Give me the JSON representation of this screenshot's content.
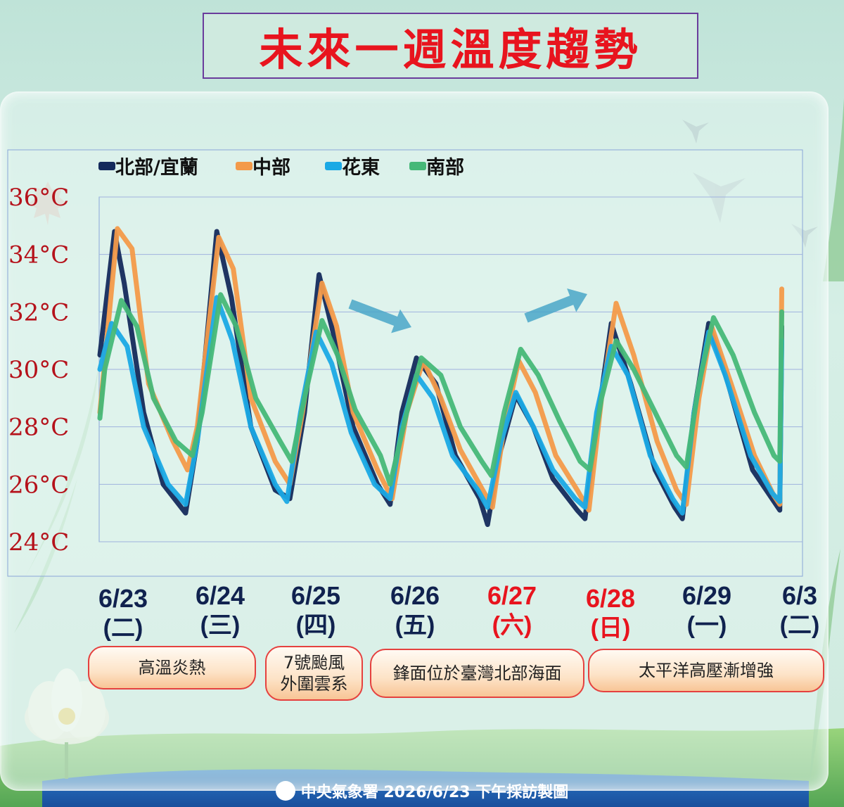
{
  "title": "未來一週溫度趨勢",
  "legend": [
    {
      "name": "北部/宜蘭",
      "color": "#142a5c"
    },
    {
      "name": "中部",
      "color": "#f39a4a"
    },
    {
      "name": "花東",
      "color": "#1aa9e5"
    },
    {
      "name": "南部",
      "color": "#46b878"
    }
  ],
  "y_ticks": [
    "36°C",
    "34°C",
    "32°C",
    "30°C",
    "28°C",
    "26°C",
    "24°C"
  ],
  "dates": [
    {
      "date": "6/23",
      "weekday": "(二)",
      "color": "#10224f"
    },
    {
      "date": "6/24",
      "weekday": "(三)",
      "color": "#10224f"
    },
    {
      "date": "6/25",
      "weekday": "(四)",
      "color": "#10224f"
    },
    {
      "date": "6/26",
      "weekday": "(五)",
      "color": "#10224f"
    },
    {
      "date": "6/27",
      "weekday": "(六)",
      "color": "#e8141e"
    },
    {
      "date": "6/28",
      "weekday": "(日)",
      "color": "#e8141e"
    },
    {
      "date": "6/29",
      "weekday": "(一)",
      "color": "#10224f"
    },
    {
      "date": "6/3",
      "weekday": "(二)",
      "color": "#10224f"
    }
  ],
  "annotations": [
    "高溫炎熱",
    "7號颱風\n外圍雲系",
    "鋒面位於臺灣北部海面",
    "太平洋高壓漸增強"
  ],
  "footer": "中央氣象署 2026/6/23 下午採訪製圖",
  "chart_data": {
    "type": "line",
    "ylim": [
      24,
      36
    ],
    "x_range": [
      0,
      7
    ],
    "series": [
      {
        "name": "北部/宜蘭",
        "color": "#142a5c",
        "points": [
          [
            0,
            30.5
          ],
          [
            0.15,
            34.8
          ],
          [
            0.25,
            33.0
          ],
          [
            0.45,
            28.5
          ],
          [
            0.65,
            26.0
          ],
          [
            0.88,
            25.0
          ],
          [
            1.0,
            27.5
          ],
          [
            1.2,
            34.8
          ],
          [
            1.35,
            32.5
          ],
          [
            1.55,
            28.0
          ],
          [
            1.8,
            25.8
          ],
          [
            1.95,
            25.5
          ],
          [
            2.1,
            28.5
          ],
          [
            2.25,
            33.3
          ],
          [
            2.4,
            31.2
          ],
          [
            2.6,
            28.0
          ],
          [
            2.85,
            26.0
          ],
          [
            2.98,
            25.3
          ],
          [
            3.1,
            28.5
          ],
          [
            3.25,
            30.4
          ],
          [
            3.45,
            29.5
          ],
          [
            3.65,
            27.0
          ],
          [
            3.9,
            25.5
          ],
          [
            3.98,
            24.6
          ],
          [
            4.1,
            27.0
          ],
          [
            4.27,
            29.1
          ],
          [
            4.45,
            28.0
          ],
          [
            4.65,
            26.2
          ],
          [
            4.9,
            25.1
          ],
          [
            4.98,
            24.8
          ],
          [
            5.1,
            28.0
          ],
          [
            5.25,
            31.6
          ],
          [
            5.45,
            29.5
          ],
          [
            5.7,
            26.5
          ],
          [
            5.9,
            25.2
          ],
          [
            5.98,
            24.8
          ],
          [
            6.1,
            28.5
          ],
          [
            6.25,
            31.6
          ],
          [
            6.45,
            29.5
          ],
          [
            6.7,
            26.5
          ],
          [
            6.9,
            25.5
          ],
          [
            6.98,
            25.1
          ],
          [
            7.0,
            31.5
          ]
        ]
      },
      {
        "name": "中部",
        "color": "#f39a4a",
        "points": [
          [
            0,
            28.5
          ],
          [
            0.18,
            34.9
          ],
          [
            0.33,
            34.2
          ],
          [
            0.5,
            29.5
          ],
          [
            0.75,
            27.5
          ],
          [
            0.9,
            26.5
          ],
          [
            1.0,
            28.0
          ],
          [
            1.22,
            34.6
          ],
          [
            1.37,
            33.5
          ],
          [
            1.55,
            29.0
          ],
          [
            1.8,
            26.8
          ],
          [
            1.95,
            26.0
          ],
          [
            2.08,
            28.5
          ],
          [
            2.28,
            33.0
          ],
          [
            2.43,
            31.5
          ],
          [
            2.6,
            28.5
          ],
          [
            2.85,
            26.5
          ],
          [
            3.0,
            25.5
          ],
          [
            3.15,
            28.5
          ],
          [
            3.32,
            30.3
          ],
          [
            3.5,
            29.0
          ],
          [
            3.7,
            27.2
          ],
          [
            3.93,
            25.8
          ],
          [
            4.03,
            25.2
          ],
          [
            4.15,
            28.0
          ],
          [
            4.3,
            30.3
          ],
          [
            4.47,
            29.2
          ],
          [
            4.68,
            27.0
          ],
          [
            4.9,
            25.8
          ],
          [
            5.02,
            25.1
          ],
          [
            5.15,
            29.0
          ],
          [
            5.3,
            32.3
          ],
          [
            5.48,
            30.5
          ],
          [
            5.72,
            27.5
          ],
          [
            5.92,
            25.8
          ],
          [
            6.02,
            25.3
          ],
          [
            6.15,
            29.0
          ],
          [
            6.28,
            31.5
          ],
          [
            6.48,
            29.5
          ],
          [
            6.72,
            27.0
          ],
          [
            6.92,
            25.6
          ],
          [
            6.98,
            25.3
          ],
          [
            7.0,
            32.8
          ]
        ]
      },
      {
        "name": "花東",
        "color": "#1aa9e5",
        "points": [
          [
            0,
            30.0
          ],
          [
            0.12,
            31.6
          ],
          [
            0.28,
            30.8
          ],
          [
            0.45,
            28.0
          ],
          [
            0.7,
            26.0
          ],
          [
            0.88,
            25.3
          ],
          [
            1.0,
            27.5
          ],
          [
            1.2,
            32.5
          ],
          [
            1.36,
            31.0
          ],
          [
            1.55,
            28.0
          ],
          [
            1.8,
            26.0
          ],
          [
            1.92,
            25.4
          ],
          [
            2.06,
            28.5
          ],
          [
            2.22,
            31.3
          ],
          [
            2.38,
            30.2
          ],
          [
            2.58,
            27.8
          ],
          [
            2.82,
            26.0
          ],
          [
            2.98,
            25.5
          ],
          [
            3.1,
            28.0
          ],
          [
            3.25,
            29.8
          ],
          [
            3.42,
            29.0
          ],
          [
            3.62,
            27.0
          ],
          [
            3.88,
            25.8
          ],
          [
            3.98,
            25.2
          ],
          [
            4.12,
            27.5
          ],
          [
            4.27,
            29.2
          ],
          [
            4.45,
            28.0
          ],
          [
            4.65,
            26.5
          ],
          [
            4.88,
            25.5
          ],
          [
            4.98,
            25.2
          ],
          [
            5.1,
            28.5
          ],
          [
            5.25,
            30.8
          ],
          [
            5.42,
            29.8
          ],
          [
            5.65,
            27.0
          ],
          [
            5.88,
            25.5
          ],
          [
            5.98,
            25.0
          ],
          [
            6.1,
            28.5
          ],
          [
            6.25,
            31.3
          ],
          [
            6.42,
            29.8
          ],
          [
            6.68,
            27.0
          ],
          [
            6.9,
            25.7
          ],
          [
            6.98,
            25.4
          ],
          [
            7.0,
            31.0
          ]
        ]
      },
      {
        "name": "南部",
        "color": "#46b878",
        "points": [
          [
            0,
            28.3
          ],
          [
            0.05,
            30.0
          ],
          [
            0.22,
            32.4
          ],
          [
            0.38,
            31.5
          ],
          [
            0.55,
            29.0
          ],
          [
            0.78,
            27.5
          ],
          [
            0.95,
            27.0
          ],
          [
            1.05,
            28.5
          ],
          [
            1.24,
            32.6
          ],
          [
            1.4,
            31.5
          ],
          [
            1.6,
            29.0
          ],
          [
            1.85,
            27.5
          ],
          [
            1.97,
            26.8
          ],
          [
            2.1,
            29.0
          ],
          [
            2.28,
            31.7
          ],
          [
            2.44,
            30.5
          ],
          [
            2.62,
            28.6
          ],
          [
            2.88,
            27.0
          ],
          [
            2.98,
            26.0
          ],
          [
            3.15,
            28.5
          ],
          [
            3.3,
            30.4
          ],
          [
            3.5,
            29.8
          ],
          [
            3.7,
            28.0
          ],
          [
            3.92,
            26.8
          ],
          [
            4.02,
            26.3
          ],
          [
            4.15,
            28.5
          ],
          [
            4.32,
            30.7
          ],
          [
            4.5,
            29.8
          ],
          [
            4.72,
            28.2
          ],
          [
            4.93,
            26.8
          ],
          [
            5.03,
            26.5
          ],
          [
            5.15,
            29.0
          ],
          [
            5.3,
            31.0
          ],
          [
            5.48,
            30.0
          ],
          [
            5.7,
            28.5
          ],
          [
            5.92,
            27.0
          ],
          [
            6.02,
            26.6
          ],
          [
            6.15,
            29.5
          ],
          [
            6.3,
            31.8
          ],
          [
            6.5,
            30.5
          ],
          [
            6.72,
            28.5
          ],
          [
            6.92,
            27.0
          ],
          [
            6.98,
            26.8
          ],
          [
            7.0,
            32.0
          ]
        ]
      }
    ]
  }
}
